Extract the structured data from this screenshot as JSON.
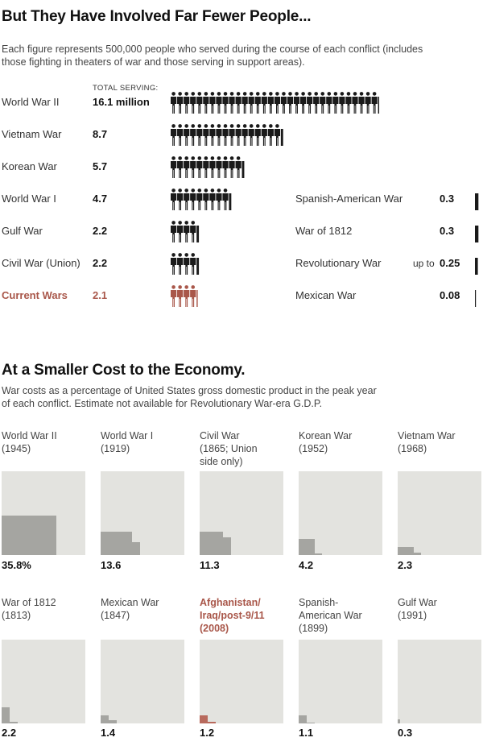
{
  "section1": {
    "title": "But They Have Involved Far Fewer People...",
    "subtitle_line1": "Each figure represents 500,000 people who served during the course of each conflict (includes",
    "subtitle_line2": "those fighting in theaters of war and those serving in support areas).",
    "total_header": "TOTAL SERVING:"
  },
  "section2": {
    "title": "At a Smaller Cost to the Economy.",
    "subtitle_line1": "War costs as a percentage of United States gross domestic product in the peak year",
    "subtitle_line2": "of each conflict. Estimate not available for Revolutionary War-era G.D.P."
  },
  "colors": {
    "figure": "#1a1a1a",
    "current": "#a9574a",
    "box": "#e3e3df",
    "fill": "#a5a5a1"
  },
  "chart_data": [
    {
      "type": "bar",
      "title": "But They Have Involved Far Fewer People...",
      "unit": "million people served (1 figure = 500,000)",
      "left_column": [
        {
          "label": "World War II",
          "value_text": "16.1 million",
          "value": 16.1
        },
        {
          "label": "Vietnam War",
          "value_text": "8.7",
          "value": 8.7
        },
        {
          "label": "Korean War",
          "value_text": "5.7",
          "value": 5.7
        },
        {
          "label": "World War I",
          "value_text": "4.7",
          "value": 4.7
        },
        {
          "label": "Gulf War",
          "value_text": "2.2",
          "value": 2.2
        },
        {
          "label": "Civil War (Union)",
          "value_text": "2.2",
          "value": 2.2
        },
        {
          "label": "Current Wars",
          "value_text": "2.1",
          "value": 2.1,
          "highlight": true
        }
      ],
      "right_column": [
        {
          "label": "Spanish-American War",
          "prefix": "",
          "value_text": "0.3",
          "value": 0.3
        },
        {
          "label": "War of 1812",
          "prefix": "",
          "value_text": "0.3",
          "value": 0.3
        },
        {
          "label": "Revolutionary War",
          "prefix": "up to",
          "value_text": "0.25",
          "value": 0.25
        },
        {
          "label": "Mexican War",
          "prefix": "",
          "value_text": "0.08",
          "value": 0.08
        }
      ]
    },
    {
      "type": "bar",
      "title": "At a Smaller Cost to the Economy.",
      "unit": "percent of GDP",
      "panels": [
        {
          "name": "World War II",
          "year": "(1945)",
          "value_text": "35.8%",
          "value": 35.8
        },
        {
          "name": "World War I",
          "year": "(1919)",
          "value_text": "13.6",
          "value": 13.6
        },
        {
          "name": "Civil War",
          "year": "(1865; Union",
          "year2": "side only)",
          "value_text": "11.3",
          "value": 11.3
        },
        {
          "name": "Korean War",
          "year": "(1952)",
          "value_text": "4.2",
          "value": 4.2
        },
        {
          "name": "Vietnam War",
          "year": "(1968)",
          "value_text": "2.3",
          "value": 2.3
        },
        {
          "name": "War of 1812",
          "year": "(1813)",
          "value_text": "2.2",
          "value": 2.2
        },
        {
          "name": "Mexican War",
          "year": "(1847)",
          "value_text": "1.4",
          "value": 1.4
        },
        {
          "name": "Afghanistan/",
          "name2": "Iraq/post-9/11",
          "year": "(2008)",
          "value_text": "1.2",
          "value": 1.2,
          "highlight": true
        },
        {
          "name": "Spanish-",
          "name2": "American War",
          "year": "(1899)",
          "value_text": "1.1",
          "value": 1.1
        },
        {
          "name": "Gulf War",
          "year": "(1991)",
          "value_text": "0.3",
          "value": 0.3
        }
      ]
    }
  ]
}
